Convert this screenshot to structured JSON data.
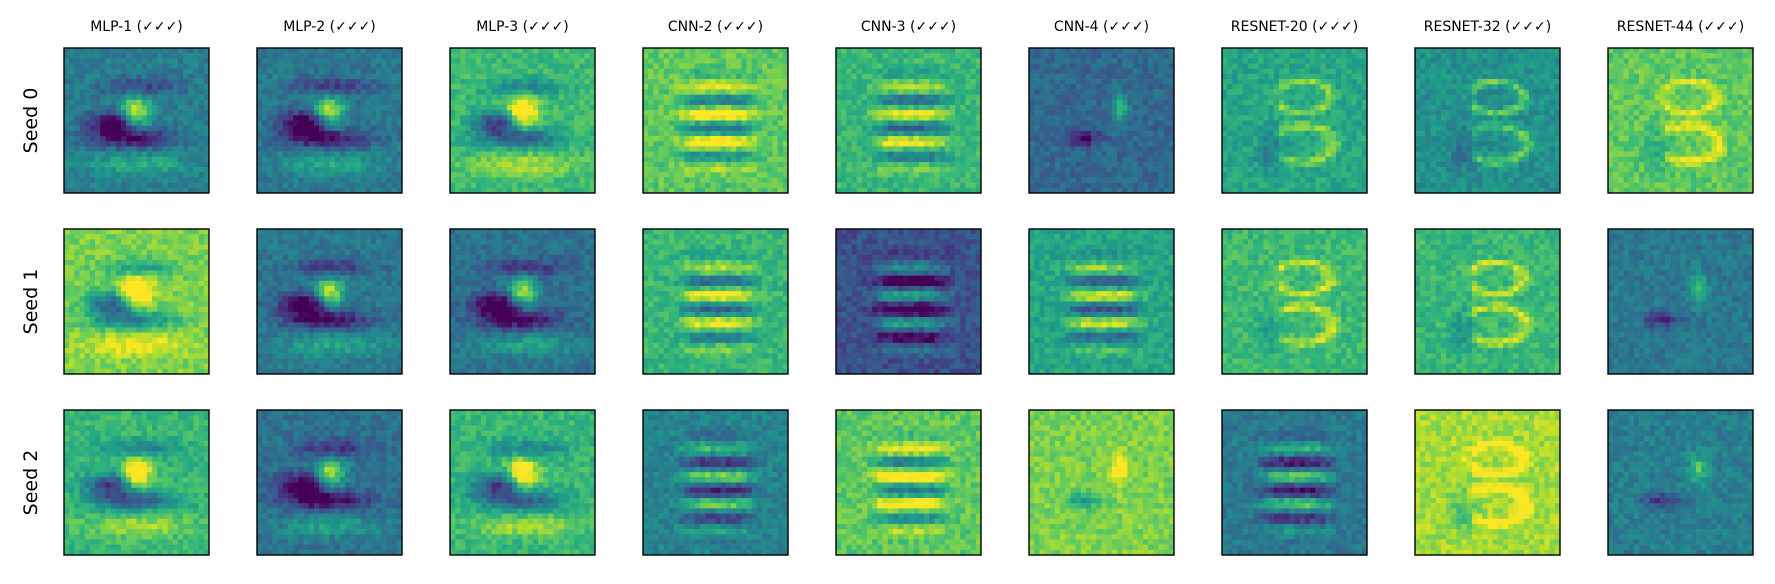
{
  "chart_data": {
    "type": "heatmap",
    "colormap": "viridis",
    "axes_visible": false,
    "columns": [
      "MLP-1 (✓✓✓)",
      "MLP-2 (✓✓✓)",
      "MLP-3 (✓✓✓)",
      "CNN-2 (✓✓✓)",
      "CNN-3 (✓✓✓)",
      "CNN-4 (✓✓✓)",
      "RESNET-20 (✓✓✓)",
      "RESNET-32 (✓✓✓)",
      "RESNET-44 (✓✓✓)"
    ],
    "rows": [
      "Seed 0",
      "Seed 1",
      "Seed 2"
    ],
    "panels": [
      {
        "column": "MLP-1 (✓✓✓)",
        "row": "Seed 0",
        "pattern": "blob-digit",
        "background": "#287d8e"
      },
      {
        "column": "MLP-2 (✓✓✓)",
        "row": "Seed 0",
        "pattern": "blob-digit",
        "background": "#2a788e"
      },
      {
        "column": "MLP-3 (✓✓✓)",
        "row": "Seed 0",
        "pattern": "blob-digit",
        "background": "#3bbb75"
      },
      {
        "column": "CNN-2 (✓✓✓)",
        "row": "Seed 0",
        "pattern": "scribble",
        "background": "#5ec962"
      },
      {
        "column": "CNN-3 (✓✓✓)",
        "row": "Seed 0",
        "pattern": "scribble",
        "background": "#35b779"
      },
      {
        "column": "CNN-4 (✓✓✓)",
        "row": "Seed 0",
        "pattern": "sparse",
        "background": "#31688e"
      },
      {
        "column": "RESNET-20 (✓✓✓)",
        "row": "Seed 0",
        "pattern": "three",
        "background": "#22a884"
      },
      {
        "column": "RESNET-32 (✓✓✓)",
        "row": "Seed 0",
        "pattern": "three",
        "background": "#21918c"
      },
      {
        "column": "RESNET-44 (✓✓✓)",
        "row": "Seed 0",
        "pattern": "three",
        "background": "#5ec962"
      },
      {
        "column": "MLP-1 (✓✓✓)",
        "row": "Seed 1",
        "pattern": "blob-digit",
        "background": "#7ad151"
      },
      {
        "column": "MLP-2 (✓✓✓)",
        "row": "Seed 1",
        "pattern": "blob-digit",
        "background": "#2a788e"
      },
      {
        "column": "MLP-3 (✓✓✓)",
        "row": "Seed 1",
        "pattern": "blob-digit",
        "background": "#2c728e"
      },
      {
        "column": "CNN-2 (✓✓✓)",
        "row": "Seed 1",
        "pattern": "scribble",
        "background": "#35b779"
      },
      {
        "column": "CNN-3 (✓✓✓)",
        "row": "Seed 1",
        "pattern": "scribble",
        "background": "#3b528b"
      },
      {
        "column": "CNN-4 (✓✓✓)",
        "row": "Seed 1",
        "pattern": "scribble",
        "background": "#22a884"
      },
      {
        "column": "RESNET-20 (✓✓✓)",
        "row": "Seed 1",
        "pattern": "three",
        "background": "#3bbb75"
      },
      {
        "column": "RESNET-32 (✓✓✓)",
        "row": "Seed 1",
        "pattern": "three",
        "background": "#35b779"
      },
      {
        "column": "RESNET-44 (✓✓✓)",
        "row": "Seed 1",
        "pattern": "sparse",
        "background": "#2a788e"
      },
      {
        "column": "MLP-1 (✓✓✓)",
        "row": "Seed 2",
        "pattern": "blob-digit",
        "background": "#35b779"
      },
      {
        "column": "MLP-2 (✓✓✓)",
        "row": "Seed 2",
        "pattern": "blob-digit",
        "background": "#2c728e"
      },
      {
        "column": "MLP-3 (✓✓✓)",
        "row": "Seed 2",
        "pattern": "blob-digit",
        "background": "#35b779"
      },
      {
        "column": "CNN-2 (✓✓✓)",
        "row": "Seed 2",
        "pattern": "scribble",
        "background": "#26828e"
      },
      {
        "column": "CNN-3 (✓✓✓)",
        "row": "Seed 2",
        "pattern": "scribble",
        "background": "#5ec962"
      },
      {
        "column": "CNN-4 (✓✓✓)",
        "row": "Seed 2",
        "pattern": "sparse",
        "background": "#7ad151"
      },
      {
        "column": "RESNET-20 (✓✓✓)",
        "row": "Seed 2",
        "pattern": "scribble",
        "background": "#2a788e"
      },
      {
        "column": "RESNET-32 (✓✓✓)",
        "row": "Seed 2",
        "pattern": "three",
        "background": "#a0da39"
      },
      {
        "column": "RESNET-44 (✓✓✓)",
        "row": "Seed 2",
        "pattern": "sparse",
        "background": "#287d8e"
      }
    ]
  }
}
